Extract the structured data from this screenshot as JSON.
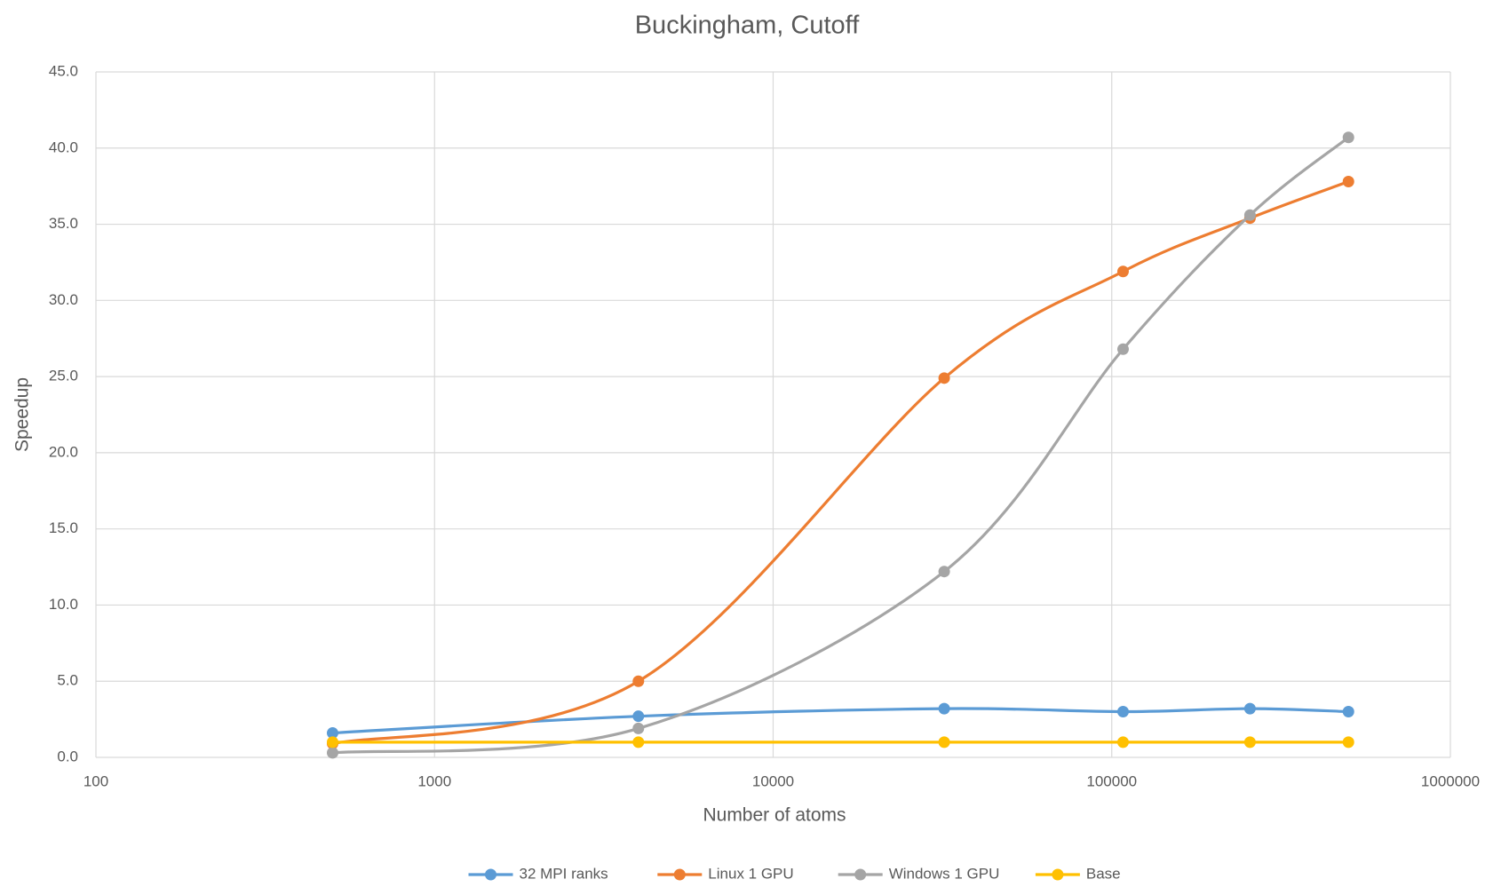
{
  "chart_data": {
    "type": "line",
    "title": "Buckingham, Cutoff",
    "x_label": "Number of atoms",
    "y_label": "Speedup",
    "x": [
      500,
      4000,
      32000,
      108000,
      256000,
      500000
    ],
    "x_log": true,
    "xlim": [
      100,
      1000000
    ],
    "xticks": [
      100,
      1000,
      10000,
      100000,
      1000000
    ],
    "ylim": [
      0,
      45
    ],
    "yticks": [
      {
        "value": 0,
        "label": "0.0"
      },
      {
        "value": 5,
        "label": "5.0"
      },
      {
        "value": 10,
        "label": "10.0"
      },
      {
        "value": 15,
        "label": "15.0"
      },
      {
        "value": 20,
        "label": "20.0"
      },
      {
        "value": 25,
        "label": "25.0"
      },
      {
        "value": 30,
        "label": "30.0"
      },
      {
        "value": 35,
        "label": "35.0"
      },
      {
        "value": 40,
        "label": "40.0"
      },
      {
        "value": 45,
        "label": "45.0"
      }
    ],
    "grid": true,
    "smooth": true,
    "legend": "bottom",
    "series": [
      {
        "name": "32 MPI ranks",
        "color": "#5b9bd5",
        "values": [
          1.6,
          2.7,
          3.2,
          3.0,
          3.2,
          3.0
        ]
      },
      {
        "name": "Linux 1 GPU",
        "color": "#ed7d31",
        "values": [
          0.9,
          5.0,
          24.9,
          31.9,
          35.4,
          37.8
        ]
      },
      {
        "name": "Windows 1 GPU",
        "color": "#a5a5a5",
        "values": [
          0.3,
          1.9,
          12.2,
          26.8,
          35.6,
          40.7
        ]
      },
      {
        "name": "Base",
        "color": "#ffc000",
        "values": [
          1.0,
          1.0,
          1.0,
          1.0,
          1.0,
          1.0
        ]
      }
    ]
  }
}
